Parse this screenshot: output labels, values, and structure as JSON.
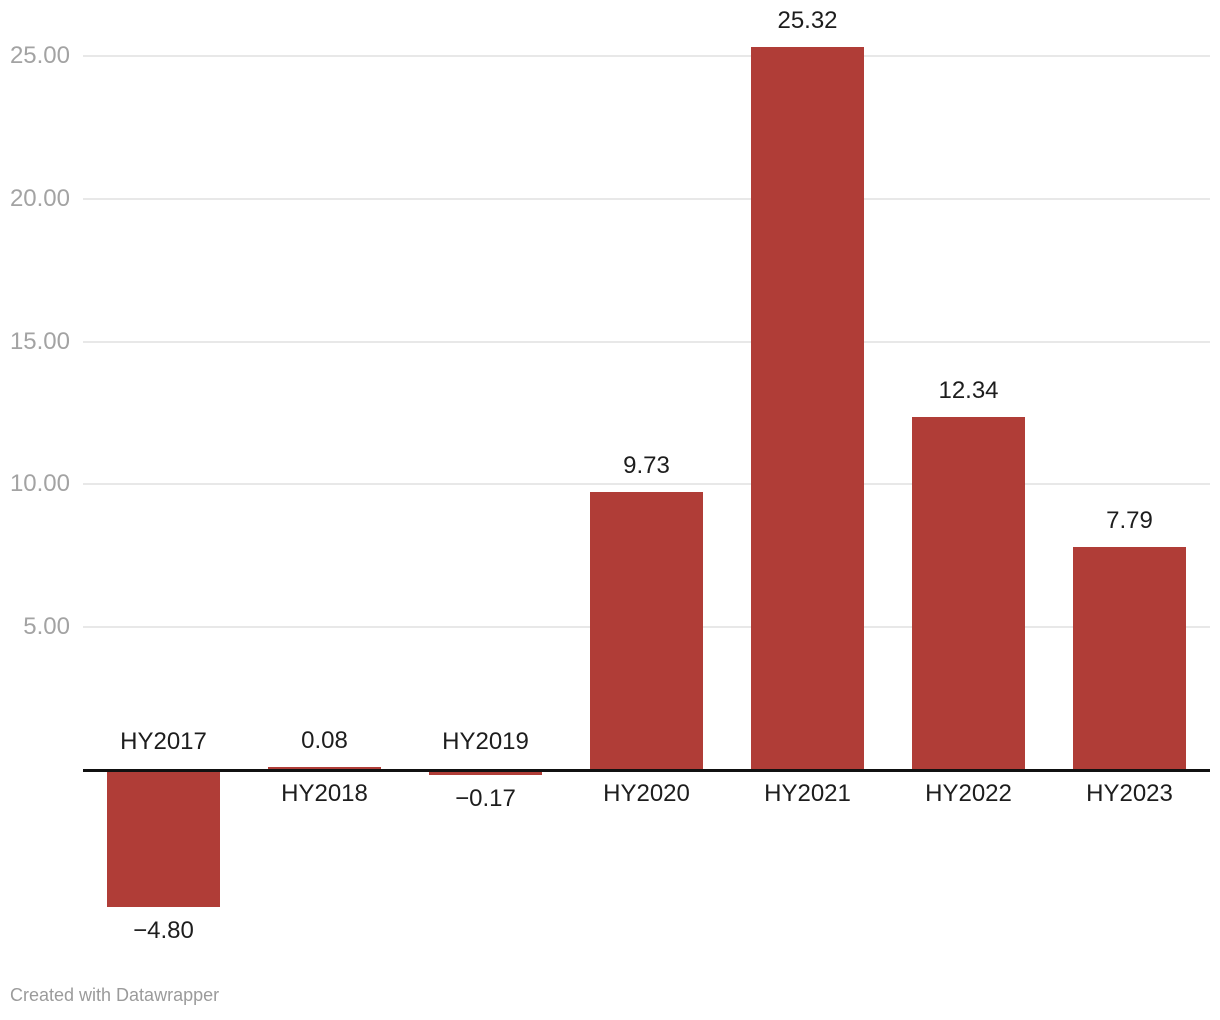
{
  "chart_data": {
    "type": "bar",
    "title": "",
    "xlabel": "",
    "ylabel": "",
    "categories": [
      "HY2017",
      "HY2018",
      "HY2019",
      "HY2020",
      "HY2021",
      "HY2022",
      "HY2023"
    ],
    "values": [
      -4.8,
      0.08,
      -0.17,
      9.73,
      25.32,
      12.34,
      7.79
    ],
    "value_labels": [
      "−4.80",
      "0.08",
      "−0.17",
      "9.73",
      "25.32",
      "12.34",
      "7.79"
    ],
    "yticks": [
      {
        "value": 5,
        "label": "5.00"
      },
      {
        "value": 10,
        "label": "10.00"
      },
      {
        "value": 15,
        "label": "15.00"
      },
      {
        "value": 20,
        "label": "20.00"
      },
      {
        "value": 25,
        "label": "25.00"
      }
    ],
    "ylim": [
      -7,
      26.5
    ],
    "baseline": 0,
    "grid": "horizontal",
    "legend": "none",
    "bar_color": "#b03d37"
  },
  "colors": {
    "background": "#ffffff",
    "bar": "#b03d37",
    "gridline": "#e8e8e8",
    "axis_line": "#111111",
    "tick_label": "#a3a3a3",
    "data_label": "#1d1d1d",
    "footer": "#9b9b9b"
  },
  "footer": {
    "credit": "Created with Datawrapper"
  }
}
